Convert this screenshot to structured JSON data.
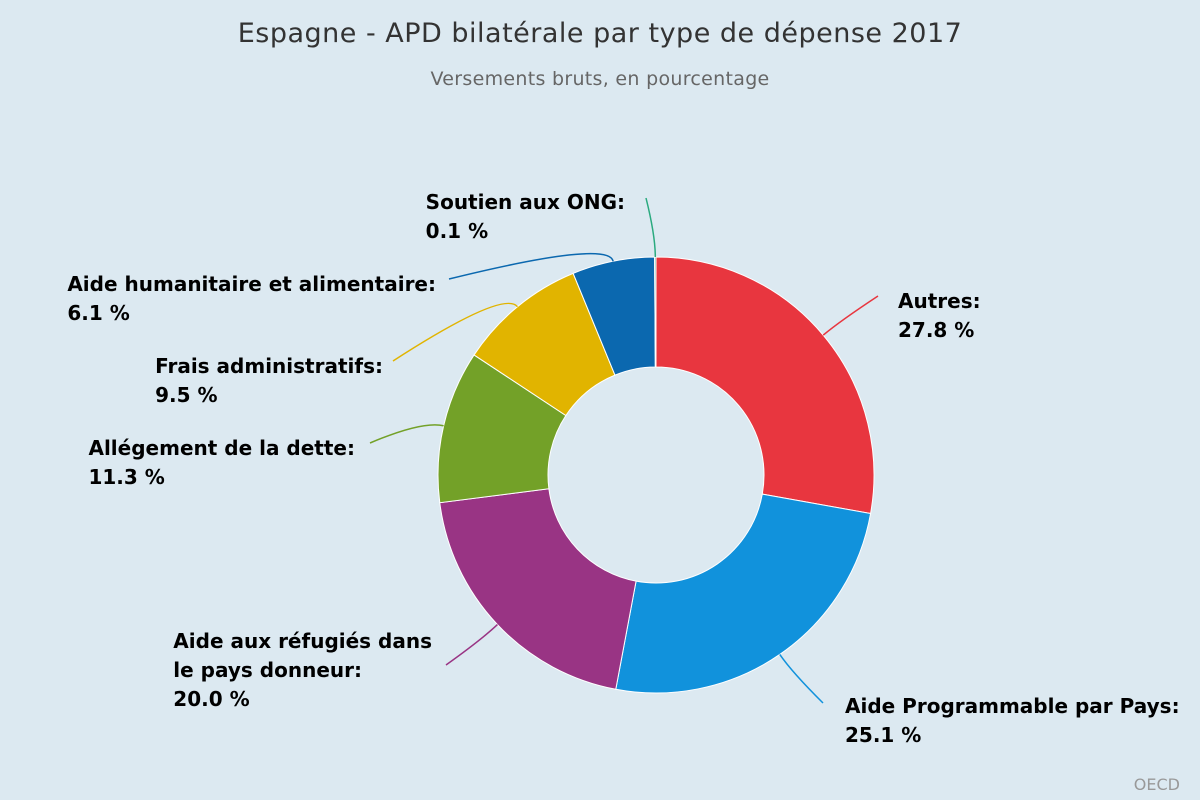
{
  "chart_data": {
    "type": "pie",
    "donut": true,
    "title": "Espagne - APD bilatérale par type de dépense 2017",
    "subtitle": "Versements bruts, en pourcentage",
    "unit": "%",
    "slices": [
      {
        "label": "Autres:",
        "value": 27.8,
        "value_label": "27.8 %",
        "color": "#e8363f"
      },
      {
        "label": "Aide Programmable par Pays:",
        "value": 25.1,
        "value_label": "25.1 %",
        "color": "#1192dc"
      },
      {
        "label": "Aide aux réfugiés dans le pays donneur:",
        "label_lines": [
          "Aide aux réfugiés dans",
          "le pays donneur:"
        ],
        "value": 20.0,
        "value_label": "20.0 %",
        "color": "#993484"
      },
      {
        "label": "Allégement de la dette:",
        "value": 11.3,
        "value_label": "11.3 %",
        "color": "#73a128"
      },
      {
        "label": "Frais administratifs:",
        "value": 9.5,
        "value_label": "9.5 %",
        "color": "#e1b400"
      },
      {
        "label": "Aide humanitaire et alimentaire:",
        "value": 6.1,
        "value_label": "6.1 %",
        "color": "#0b68af"
      },
      {
        "label": "Soutien aux ONG:",
        "value": 0.1,
        "value_label": "0.1 %",
        "color": "#2aaa7f"
      }
    ],
    "credit": "OECD"
  }
}
